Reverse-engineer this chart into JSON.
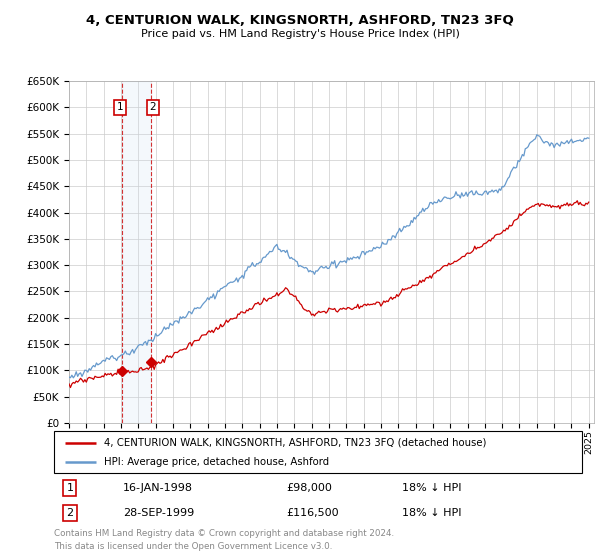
{
  "title": "4, CENTURION WALK, KINGSNORTH, ASHFORD, TN23 3FQ",
  "subtitle": "Price paid vs. HM Land Registry's House Price Index (HPI)",
  "sale1_date": "16-JAN-1998",
  "sale1_price": 98000,
  "sale2_date": "28-SEP-1999",
  "sale2_price": 116500,
  "sale1_hpi_text": "18% ↓ HPI",
  "sale2_hpi_text": "18% ↓ HPI",
  "legend_property": "4, CENTURION WALK, KINGSNORTH, ASHFORD, TN23 3FQ (detached house)",
  "legend_hpi": "HPI: Average price, detached house, Ashford",
  "footer": "Contains HM Land Registry data © Crown copyright and database right 2024.\nThis data is licensed under the Open Government Licence v3.0.",
  "property_line_color": "#cc0000",
  "hpi_line_color": "#6699cc",
  "sale_marker_color": "#cc0000",
  "vline_color": "#cc0000",
  "highlight_color": "#cce0f0",
  "grid_color": "#cccccc",
  "background_color": "#ffffff",
  "ylim": [
    0,
    650000
  ],
  "footnote_color": "#888888",
  "sale1_x": 1998.04,
  "sale2_x": 1999.75
}
